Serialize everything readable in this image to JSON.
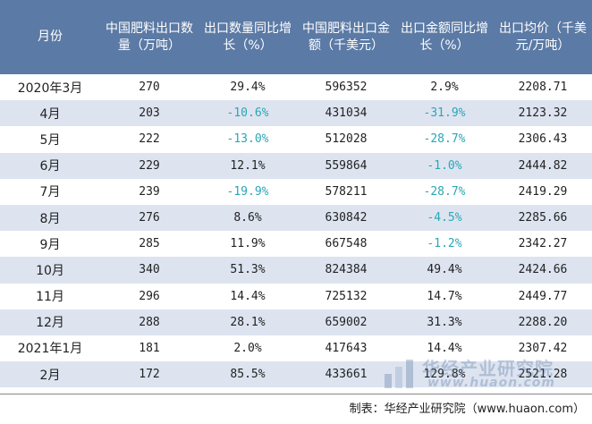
{
  "headers": [
    "月份",
    "中国肥料出口数量（万吨）",
    "出口数量同比增长（%）",
    "中国肥料出口金额（千美元）",
    "出口金额同比增长（%）",
    "出口均价（千美元/万吨）"
  ],
  "rows": [
    [
      "2020年3月",
      "270",
      "29.4%",
      "596352",
      "2.9%",
      "2208.71"
    ],
    [
      "4月",
      "203",
      "-10.6%",
      "431034",
      "-31.9%",
      "2123.32"
    ],
    [
      "5月",
      "222",
      "-13.0%",
      "512028",
      "-28.7%",
      "2306.43"
    ],
    [
      "6月",
      "229",
      "12.1%",
      "559864",
      "-1.0%",
      "2444.82"
    ],
    [
      "7月",
      "239",
      "-19.9%",
      "578211",
      "-28.7%",
      "2419.29"
    ],
    [
      "8月",
      "276",
      "8.6%",
      "630842",
      "-4.5%",
      "2285.66"
    ],
    [
      "9月",
      "285",
      "11.9%",
      "667548",
      "-1.2%",
      "2342.27"
    ],
    [
      "10月",
      "340",
      "51.3%",
      "824384",
      "49.4%",
      "2424.66"
    ],
    [
      "11月",
      "296",
      "14.4%",
      "725132",
      "14.7%",
      "2449.77"
    ],
    [
      "12月",
      "288",
      "28.1%",
      "659002",
      "31.3%",
      "2288.20"
    ],
    [
      "2021年1月",
      "181",
      "2.0%",
      "417643",
      "14.4%",
      "2307.42"
    ],
    [
      "2月",
      "172",
      "85.5%",
      "433661",
      "129.8%",
      "2521.28"
    ]
  ],
  "footer": "制表：华经产业研究院（www.huaon.com）",
  "watermark": {
    "title": "华经产业研究院",
    "url": "www.huaon.com"
  },
  "colors": {
    "header_bg": "#5b7aa5",
    "row_alt": "#dde4f0",
    "negative": "#2aa7b5"
  }
}
